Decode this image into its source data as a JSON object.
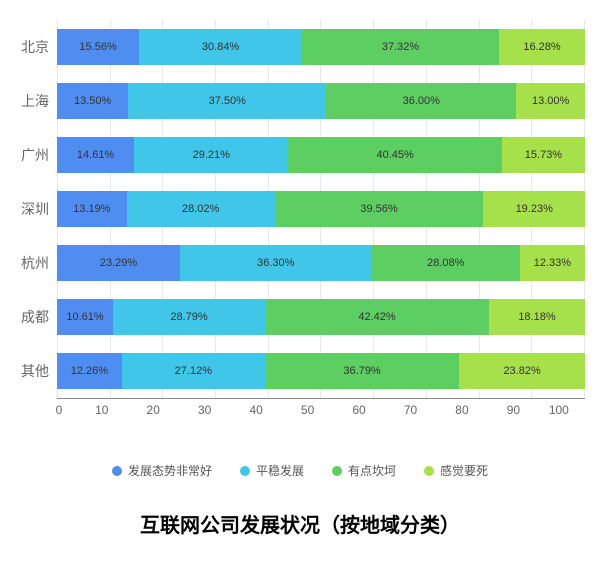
{
  "chart": {
    "type": "stacked-bar-horizontal",
    "title": "互联网公司发展状况（按地域分类）",
    "title_fontsize": 20,
    "background_color": "#ffffff",
    "grid_color": "#e8e8e8",
    "axis_color": "#888888",
    "label_color": "#666666",
    "label_fontsize": 14,
    "value_fontsize": 11,
    "xlim": [
      0,
      100
    ],
    "xtick_step": 10,
    "xticks": [
      "0",
      "10",
      "20",
      "30",
      "40",
      "50",
      "60",
      "70",
      "80",
      "90",
      "100"
    ],
    "categories": [
      "北京",
      "上海",
      "广州",
      "深圳",
      "杭州",
      "成都",
      "其他"
    ],
    "series": [
      {
        "name": "发展态势非常好",
        "color": "#4f8ef0"
      },
      {
        "name": "平稳发展",
        "color": "#3fc6e8"
      },
      {
        "name": "有点坎坷",
        "color": "#5dce61"
      },
      {
        "name": "感觉要死",
        "color": "#a6e04a"
      }
    ],
    "rows": [
      {
        "cat": "北京",
        "vals": [
          15.56,
          30.84,
          37.32,
          16.28
        ],
        "labels": [
          "15.56%",
          "30.84%",
          "37.32%",
          "16.28%"
        ]
      },
      {
        "cat": "上海",
        "vals": [
          13.5,
          37.5,
          36.0,
          13.0
        ],
        "labels": [
          "13.50%",
          "37.50%",
          "36.00%",
          "13.00%"
        ]
      },
      {
        "cat": "广州",
        "vals": [
          14.61,
          29.21,
          40.45,
          15.73
        ],
        "labels": [
          "14.61%",
          "29.21%",
          "40.45%",
          "15.73%"
        ]
      },
      {
        "cat": "深圳",
        "vals": [
          13.19,
          28.02,
          39.56,
          19.23
        ],
        "labels": [
          "13.19%",
          "28.02%",
          "39.56%",
          "19.23%"
        ]
      },
      {
        "cat": "杭州",
        "vals": [
          23.29,
          36.3,
          28.08,
          12.33
        ],
        "labels": [
          "23.29%",
          "36.30%",
          "28.08%",
          "12.33%"
        ]
      },
      {
        "cat": "成都",
        "vals": [
          10.61,
          28.79,
          42.42,
          18.18
        ],
        "labels": [
          "10.61%",
          "28.79%",
          "42.42%",
          "18.18%"
        ]
      },
      {
        "cat": "其他",
        "vals": [
          12.26,
          27.12,
          36.79,
          23.82
        ],
        "labels": [
          "12.26%",
          "27.12%",
          "36.79%",
          "23.82%"
        ]
      }
    ]
  }
}
